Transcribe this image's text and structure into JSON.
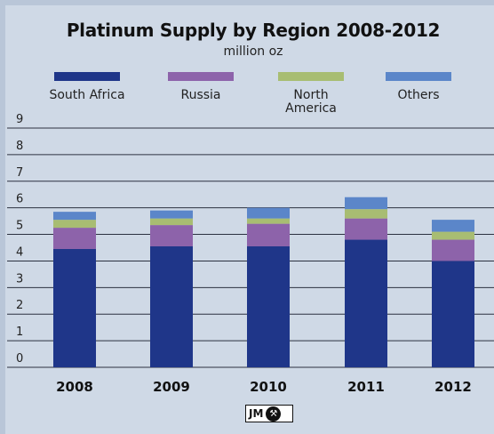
{
  "chart_data": {
    "type": "bar",
    "stacked": true,
    "title": "Platinum Supply by Region 2008-2012",
    "subtitle": "million oz",
    "categories": [
      "2008",
      "2009",
      "2010",
      "2011",
      "2012"
    ],
    "series": [
      {
        "name": "South Africa",
        "color": "#1f3689",
        "values": [
          4.45,
          4.55,
          4.55,
          4.8,
          4.0
        ]
      },
      {
        "name": "Russia",
        "color": "#8d63aa",
        "values": [
          0.8,
          0.8,
          0.85,
          0.8,
          0.8
        ]
      },
      {
        "name": "North America",
        "color": "#a8bd72",
        "values": [
          0.3,
          0.25,
          0.2,
          0.35,
          0.3
        ]
      },
      {
        "name": "Others",
        "color": "#5b86c9",
        "values": [
          0.3,
          0.3,
          0.4,
          0.45,
          0.45
        ]
      }
    ],
    "ylim": [
      0,
      9
    ],
    "yticks": [
      0,
      1,
      2,
      3,
      4,
      5,
      6,
      7,
      8,
      9
    ],
    "grid": true,
    "legend_position": "top"
  },
  "logo": {
    "text": "JM",
    "symbol": "⚒"
  }
}
